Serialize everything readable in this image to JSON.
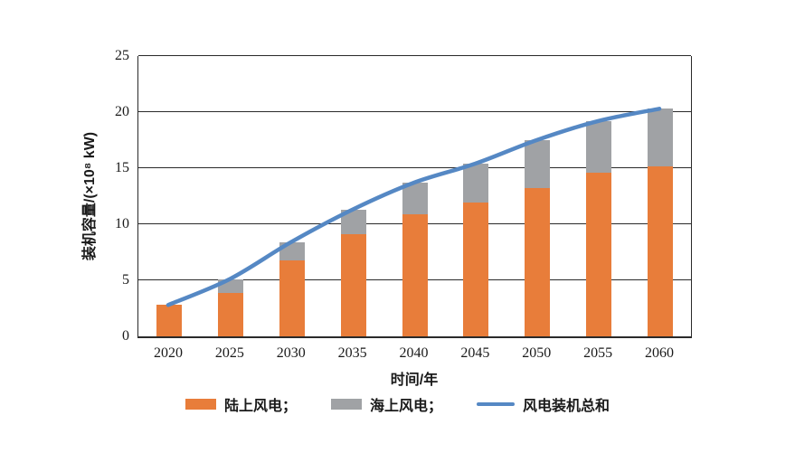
{
  "chart_data": {
    "type": "bar",
    "subtype": "stacked-bar-with-line-overlay",
    "title": "",
    "categories": [
      "2020",
      "2025",
      "2030",
      "2035",
      "2040",
      "2045",
      "2050",
      "2055",
      "2060"
    ],
    "series": [
      {
        "name": "陆上风电",
        "type": "bar",
        "stack": true,
        "color": "#E87D3A",
        "values": [
          2.8,
          3.9,
          6.8,
          9.1,
          10.9,
          11.9,
          13.2,
          14.6,
          15.2
        ]
      },
      {
        "name": "海上风电",
        "type": "bar",
        "stack": true,
        "color": "#A0A2A5",
        "values": [
          0,
          1.2,
          1.6,
          2.2,
          2.8,
          3.5,
          4.3,
          4.6,
          5.1
        ]
      },
      {
        "name": "风电装机总和",
        "type": "line",
        "color": "#5588C4",
        "values": [
          2.8,
          5.1,
          8.4,
          11.3,
          13.7,
          15.4,
          17.5,
          19.2,
          20.3
        ]
      }
    ],
    "xlabel": "时间/年",
    "ylabel": "装机容量/(×10⁸ kW)",
    "ylim": [
      0,
      25
    ],
    "yticks": [
      0,
      5,
      10,
      15,
      20,
      25
    ],
    "grid": "horizontal",
    "legend_position": "bottom",
    "legend": [
      {
        "label": "陆上风电；",
        "swatch": "bar",
        "color": "#E87D3A"
      },
      {
        "label": "海上风电；",
        "swatch": "bar",
        "color": "#A0A2A5"
      },
      {
        "label": "风电装机总和",
        "swatch": "line",
        "color": "#5588C4"
      }
    ]
  }
}
